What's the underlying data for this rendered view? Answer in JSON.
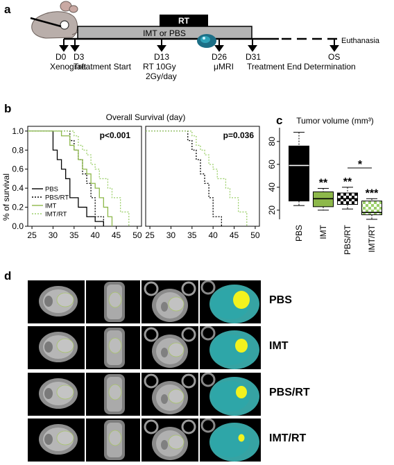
{
  "panels": {
    "a": "a",
    "b": "b",
    "c": "c",
    "d": "d"
  },
  "timeline": {
    "rt_label": "RT",
    "bar_label": "IMT or PBS",
    "euthanasia": "Euthanasia",
    "events": [
      {
        "day": "D0",
        "desc": [
          "Xenograft"
        ]
      },
      {
        "day": "D3",
        "desc": [
          "Treatment Start"
        ]
      },
      {
        "day": "D13",
        "desc": [
          "RT 10Gy",
          "2Gy/day"
        ]
      },
      {
        "day": "D26",
        "desc": [
          "μMRI"
        ]
      },
      {
        "day": "D31",
        "desc": [
          "Treatment End"
        ]
      },
      {
        "day": "OS",
        "desc": [
          "Determination"
        ]
      }
    ]
  },
  "survival": {
    "title": "Overall Survival (day)",
    "ylabel": "% of survival",
    "x_ticks": [
      "25",
      "30",
      "35",
      "40",
      "45",
      "50"
    ],
    "y_ticks": [
      "0.0",
      "0.2",
      "0.4",
      "0.6",
      "0.8",
      "1.0"
    ],
    "legend": [
      "PBS",
      "PBS/RT",
      "IMT",
      "IMT/RT"
    ]
  },
  "tumor": {
    "title": "Tumor volume (mm³)",
    "y_ticks": [
      "20",
      "40",
      "60",
      "80"
    ],
    "groups": [
      "PBS",
      "IMT",
      "PBS/RT",
      "IMT/RT"
    ],
    "stars": [
      "**",
      "**",
      "***"
    ],
    "bracket_star": "*"
  },
  "mri": {
    "rows": [
      "PBS",
      "IMT",
      "PBS/RT",
      "IMT/RT"
    ]
  },
  "colors": {
    "pbs": "#000000",
    "imt": "#8db84a",
    "imt_rt": "#9ccf6a",
    "scan_cyan": "#3fc0c0",
    "tumor_yellow": "#f2f21e"
  },
  "chart_data": [
    {
      "type": "line",
      "title": "Overall Survival (day)",
      "ylabel": "% of survival",
      "xlim": [
        24,
        51
      ],
      "ylim": [
        0,
        1.05
      ],
      "annotation": "p<0.001",
      "series": [
        {
          "name": "PBS",
          "x": [
            24,
            30,
            31,
            32,
            33,
            34,
            36,
            38,
            40,
            42
          ],
          "y": [
            1.0,
            0.8,
            0.7,
            0.6,
            0.5,
            0.3,
            0.2,
            0.1,
            0.05,
            0.0
          ]
        },
        {
          "name": "PBS/RT",
          "x": [
            24,
            34,
            35,
            36,
            37,
            38,
            39,
            40,
            42
          ],
          "y": [
            1.0,
            0.9,
            0.8,
            0.7,
            0.55,
            0.45,
            0.3,
            0.1,
            0.0
          ]
        },
        {
          "name": "IMT",
          "x": [
            24,
            32,
            34,
            35,
            36,
            37,
            38,
            39,
            40,
            41,
            42,
            43,
            44
          ],
          "y": [
            1.0,
            0.95,
            0.85,
            0.8,
            0.7,
            0.6,
            0.55,
            0.45,
            0.4,
            0.3,
            0.2,
            0.1,
            0.0
          ]
        },
        {
          "name": "IMT/RT",
          "x": [
            24,
            35,
            36,
            37,
            38,
            39,
            40,
            41,
            43,
            44,
            46,
            48
          ],
          "y": [
            1.0,
            0.95,
            0.85,
            0.8,
            0.75,
            0.65,
            0.6,
            0.5,
            0.4,
            0.3,
            0.15,
            0.0
          ]
        }
      ]
    },
    {
      "type": "line",
      "xlim": [
        24,
        51
      ],
      "ylim": [
        0,
        1.05
      ],
      "annotation": "p=0.036",
      "series": [
        {
          "name": "PBS/RT",
          "x": [
            24,
            34,
            35,
            36,
            37,
            38,
            39,
            40,
            42
          ],
          "y": [
            1.0,
            0.9,
            0.8,
            0.7,
            0.55,
            0.45,
            0.3,
            0.1,
            0.0
          ]
        },
        {
          "name": "IMT/RT",
          "x": [
            24,
            35,
            36,
            37,
            38,
            39,
            40,
            41,
            43,
            44,
            46,
            48
          ],
          "y": [
            1.0,
            0.95,
            0.85,
            0.8,
            0.75,
            0.65,
            0.6,
            0.5,
            0.4,
            0.3,
            0.15,
            0.0
          ]
        }
      ]
    },
    {
      "type": "box",
      "title": "Tumor volume (mm³)",
      "categories": [
        "PBS",
        "IMT",
        "PBS/RT",
        "IMT/RT"
      ],
      "ylim": [
        12,
        92
      ],
      "boxes": [
        {
          "min": 24,
          "q1": 28,
          "median": 59,
          "q3": 76,
          "max": 88
        },
        {
          "min": 20,
          "q1": 23,
          "median": 30,
          "q3": 36,
          "max": 39
        },
        {
          "min": 21,
          "q1": 25,
          "median": 30,
          "q3": 35,
          "max": 40
        },
        {
          "min": 12,
          "q1": 16,
          "median": 18,
          "q3": 28,
          "max": 30
        }
      ]
    }
  ]
}
